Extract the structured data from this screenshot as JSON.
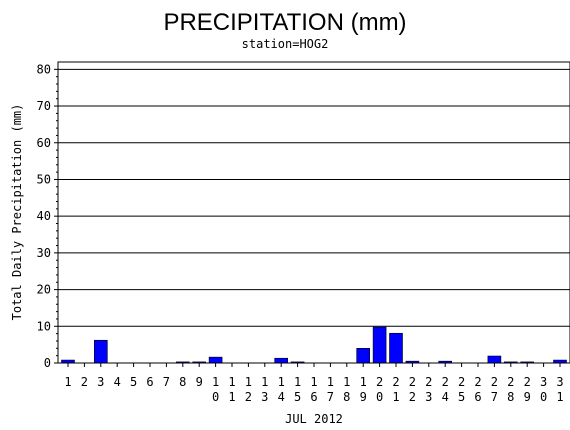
{
  "chart_data": {
    "type": "bar",
    "title": "PRECIPITATION (mm)",
    "subtitle": "station=HOG2",
    "xlabel": "JUL 2012",
    "ylabel": "Total Daily Precipitation (mm)",
    "ylim": [
      0,
      82
    ],
    "yticks": [
      0,
      10,
      20,
      30,
      40,
      50,
      60,
      70,
      80
    ],
    "grid": true,
    "bar_color": "#0000ff",
    "categories": [
      "1",
      "2",
      "3",
      "4",
      "5",
      "6",
      "7",
      "8",
      "9",
      "10",
      "11",
      "12",
      "13",
      "14",
      "15",
      "16",
      "17",
      "18",
      "19",
      "20",
      "21",
      "22",
      "23",
      "24",
      "25",
      "26",
      "27",
      "28",
      "29",
      "30",
      "31"
    ],
    "values": [
      0.8,
      0,
      6.2,
      0,
      0,
      0,
      0,
      0.3,
      0.3,
      1.6,
      0,
      0,
      0,
      1.3,
      0.3,
      0,
      0,
      0,
      4.0,
      9.8,
      8.1,
      0.5,
      0,
      0.5,
      0,
      0,
      1.9,
      0.3,
      0.3,
      0,
      0.8
    ]
  }
}
